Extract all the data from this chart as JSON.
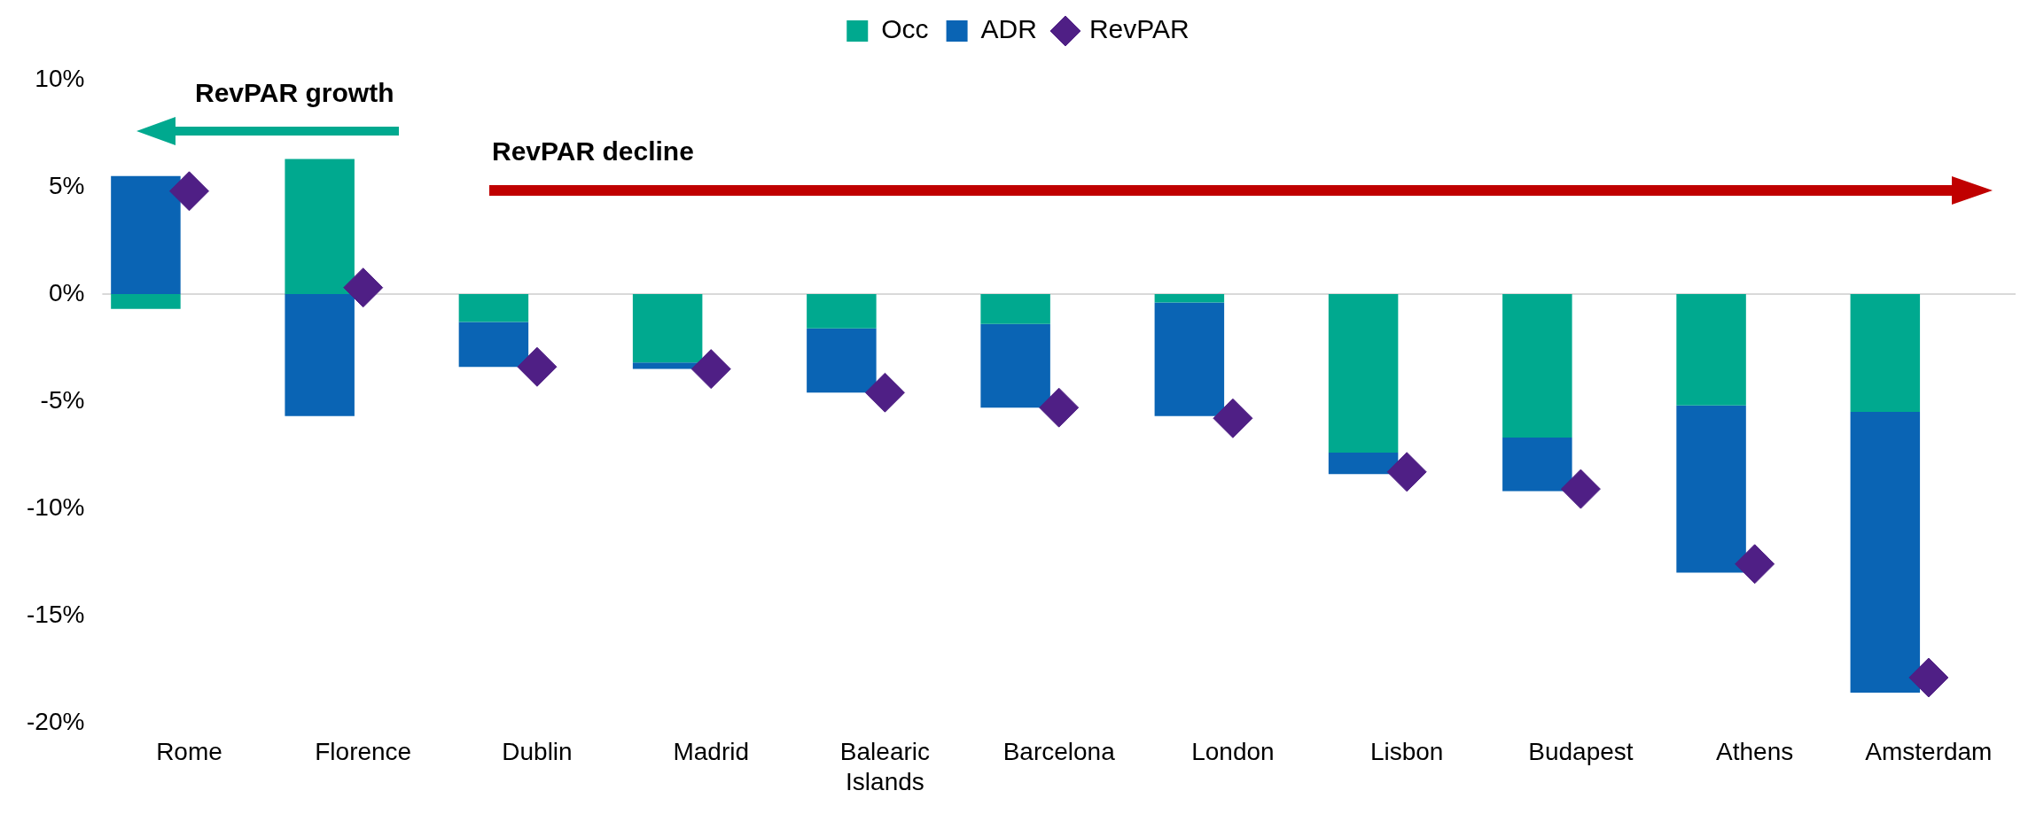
{
  "chart_data": {
    "type": "bar",
    "stacked": true,
    "categories": [
      "Rome",
      "Florence",
      "Dublin",
      "Madrid",
      "Balearic Islands",
      "Barcelona",
      "London",
      "Lisbon",
      "Budapest",
      "Athens",
      "Amsterdam"
    ],
    "series": [
      {
        "name": "Occ",
        "color": "#00a98f",
        "values": [
          -0.7,
          6.3,
          -1.3,
          -3.2,
          -1.6,
          -1.4,
          -0.4,
          -7.4,
          -6.7,
          -5.2,
          -5.5
        ]
      },
      {
        "name": "ADR",
        "color": "#0a64b4",
        "values": [
          5.5,
          -5.7,
          -2.1,
          -0.3,
          -3.0,
          -3.9,
          -5.3,
          -1.0,
          -2.5,
          -7.8,
          -13.1
        ]
      },
      {
        "name": "RevPAR",
        "type": "scatter",
        "marker": "diamond",
        "color": "#4f1f85",
        "values": [
          4.8,
          0.3,
          -3.4,
          -3.5,
          -4.6,
          -5.3,
          -5.8,
          -8.3,
          -9.1,
          -12.6,
          -17.9
        ]
      }
    ],
    "ylim": [
      -20,
      10
    ],
    "yticks": [
      {
        "value": 10,
        "label": "10%"
      },
      {
        "value": 5,
        "label": "5%"
      },
      {
        "value": 0,
        "label": "0%"
      },
      {
        "value": -5,
        "label": "-5%"
      },
      {
        "value": -10,
        "label": "-10%"
      },
      {
        "value": -15,
        "label": "-15%"
      },
      {
        "value": -20,
        "label": "-20%"
      }
    ],
    "ref_lines": [
      {
        "axis": "y",
        "value": 0,
        "color": "#d9d9d9"
      }
    ],
    "annotations": [
      "RevPAR growth",
      "RevPAR decline"
    ],
    "grid": false,
    "legend": "top"
  }
}
